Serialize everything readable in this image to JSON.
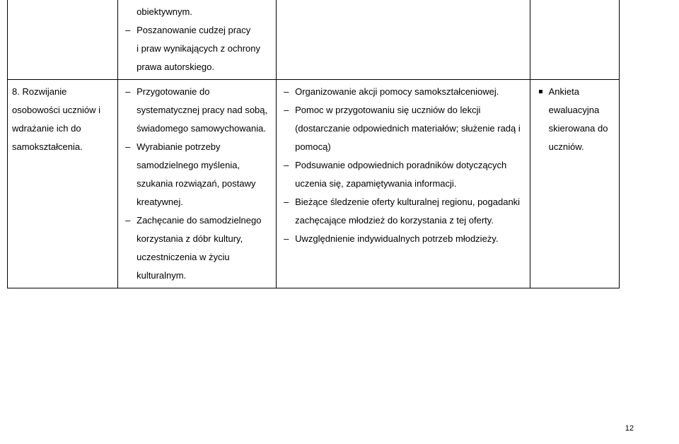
{
  "row1": {
    "col2": {
      "cont1": "obiektywnym.",
      "item1": "Poszanowanie cudzej pracy",
      "cont2": "i praw wynikających z ochrony prawa autorskiego."
    }
  },
  "row2": {
    "col1": {
      "num": "8.",
      "title_rest": "Rozwijanie osobowości uczniów i wdrażanie ich do samokształcenia."
    },
    "col2": {
      "item1": "Przygotowanie do systematycznej pracy nad sobą, świadomego samowychowania.",
      "item2": "Wyrabianie potrzeby samodzielnego myślenia, szukania rozwiązań, postawy kreatywnej.",
      "item3": "Zachęcanie do samodzielnego korzystania z dóbr kultury, uczestniczenia w życiu kulturalnym."
    },
    "col3": {
      "item1": "Organizowanie akcji pomocy samokształceniowej.",
      "item2": "Pomoc w przygotowaniu się uczniów do lekcji (dostarczanie odpowiednich materiałów; służenie radą i pomocą)",
      "item3": "Podsuwanie odpowiednich poradników dotyczących uczenia się, zapamiętywania informacji.",
      "item4": "Bieżące śledzenie oferty kulturalnej regionu, pogadanki zachęcające młodzież do korzystania z tej oferty.",
      "item5": "Uwzględnienie indywidualnych potrzeb młodzieży."
    },
    "col4": {
      "item1": "Ankieta ewaluacyjna skierowana do uczniów."
    }
  },
  "pagenum": "12"
}
